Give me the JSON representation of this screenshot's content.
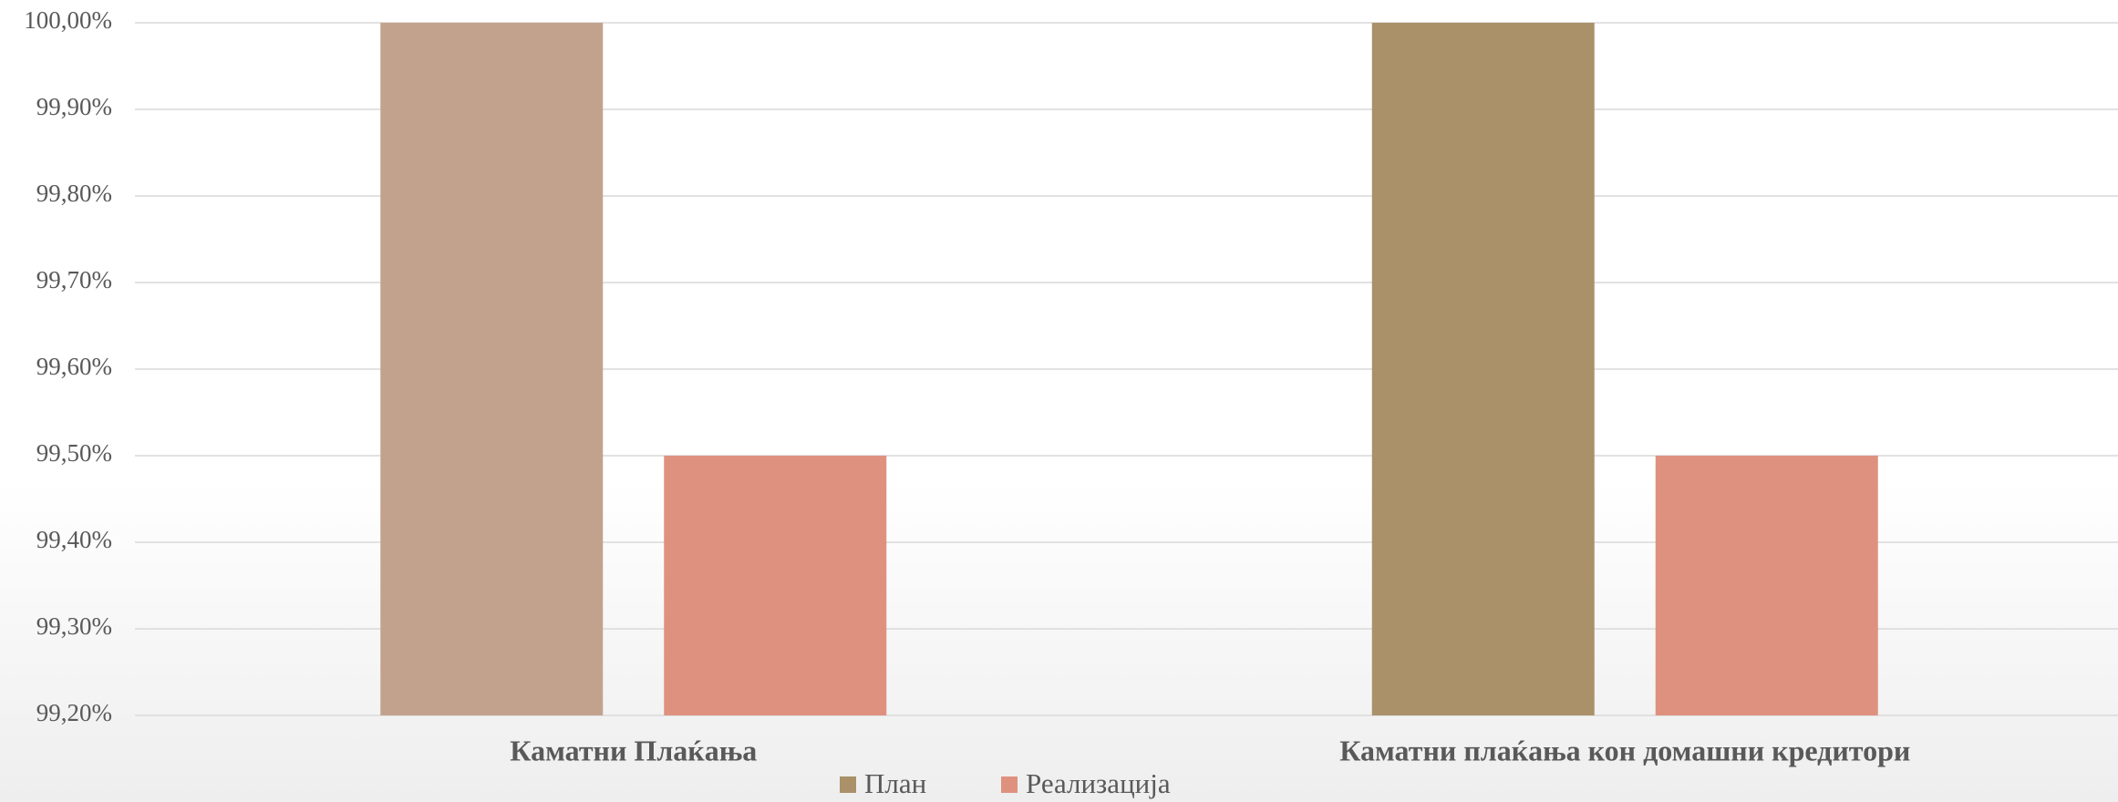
{
  "chart_data": {
    "type": "bar",
    "categories": [
      "Каматни Плаќања",
      "Каматни плаќања кон домашни кредитори"
    ],
    "series": [
      {
        "name": "План",
        "color": "#aa9169",
        "colors": [
          "#c3a28d",
          "#aa9169"
        ],
        "values": [
          100,
          100
        ]
      },
      {
        "name": "Реализација",
        "color": "#df917f",
        "values": [
          99.5,
          99.5
        ]
      }
    ],
    "ylim": [
      99.2,
      100
    ],
    "yticks": [
      {
        "value": 99.2,
        "label": "99,20%"
      },
      {
        "value": 99.3,
        "label": "99,30%"
      },
      {
        "value": 99.4,
        "label": "99,40%"
      },
      {
        "value": 99.5,
        "label": "99,50%"
      },
      {
        "value": 99.6,
        "label": "99,60%"
      },
      {
        "value": 99.7,
        "label": "99,70%"
      },
      {
        "value": 99.8,
        "label": "99,80%"
      },
      {
        "value": 99.9,
        "label": "99,90%"
      },
      {
        "value": 100,
        "label": "100,00%"
      }
    ],
    "grid": true,
    "legend": "bottom"
  }
}
